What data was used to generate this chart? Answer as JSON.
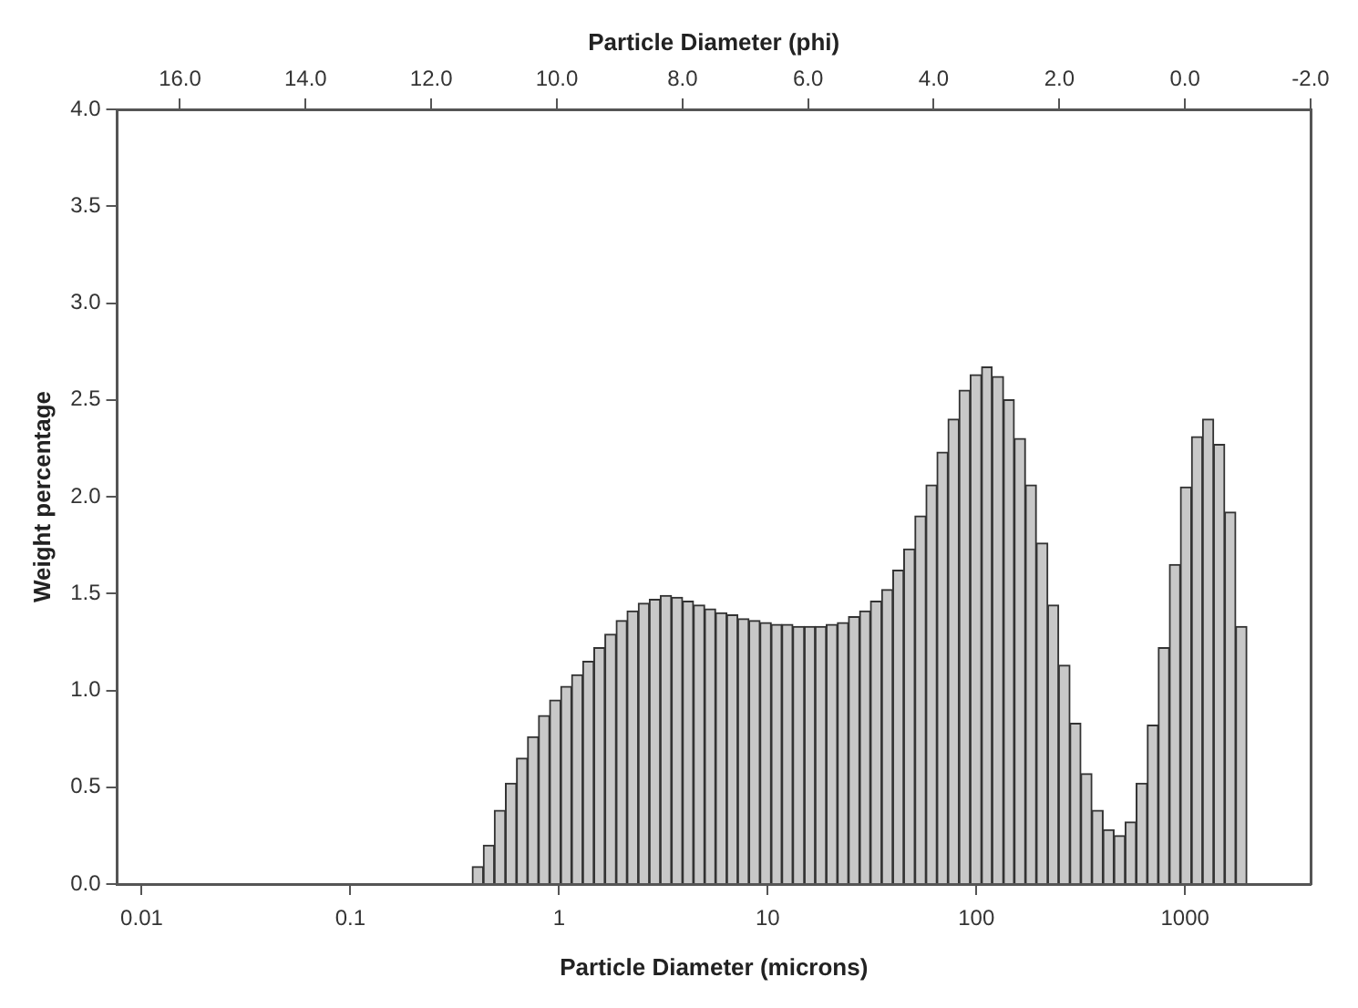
{
  "chart_data": {
    "type": "histogram",
    "xlabel": "Particle Diameter (microns)",
    "x2label": "Particle Diameter (phi)",
    "ylabel": "Weight percentage",
    "color": "#c8c8c8",
    "log": "x",
    "bins": [
      0.384,
      0.434,
      0.49,
      0.554,
      0.626,
      0.707,
      0.798,
      0.902,
      1.02,
      1.15,
      1.3,
      1.47,
      1.66,
      1.88,
      2.12,
      2.4,
      2.71,
      3.06,
      3.46,
      3.91,
      4.41,
      4.99,
      5.63,
      6.37,
      7.19,
      8.13,
      9.19,
      10.4,
      11.7,
      13.2,
      15.0,
      16.9,
      19.1,
      21.6,
      24.4,
      27.6,
      31.1,
      35.2,
      39.8,
      44.9,
      50.8,
      57.4,
      64.8,
      73.2,
      82.7,
      93.5,
      106,
      119,
      135,
      152,
      172,
      194,
      220,
      248,
      281,
      317,
      358,
      405,
      457,
      517,
      584,
      660,
      745,
      842,
      951,
      1075,
      1214,
      1372,
      1550,
      1751,
      1979
    ],
    "values": [
      0.09,
      0.2,
      0.38,
      0.52,
      0.65,
      0.76,
      0.87,
      0.95,
      1.02,
      1.08,
      1.15,
      1.22,
      1.29,
      1.36,
      1.41,
      1.45,
      1.47,
      1.49,
      1.48,
      1.46,
      1.44,
      1.42,
      1.4,
      1.39,
      1.37,
      1.36,
      1.35,
      1.34,
      1.34,
      1.33,
      1.33,
      1.33,
      1.34,
      1.35,
      1.38,
      1.41,
      1.46,
      1.52,
      1.62,
      1.73,
      1.9,
      2.06,
      2.23,
      2.4,
      2.55,
      2.63,
      2.67,
      2.62,
      2.5,
      2.3,
      2.06,
      1.76,
      1.44,
      1.13,
      0.83,
      0.57,
      0.38,
      0.28,
      0.25,
      0.32,
      0.52,
      0.82,
      1.22,
      1.65,
      2.05,
      2.31,
      2.4,
      2.27,
      1.92,
      1.33
    ],
    "xlim": [
      0.00763,
      4000
    ],
    "xticks": [
      0.01,
      0.1,
      1,
      10,
      100,
      1000
    ],
    "x2lim": [
      17,
      -2
    ],
    "x2ticks": [
      {
        "value": 16,
        "label": "16.0"
      },
      {
        "value": 14,
        "label": "14.0"
      },
      {
        "value": 12,
        "label": "12.0"
      },
      {
        "value": 10,
        "label": "10.0"
      },
      {
        "value": 8,
        "label": "8.0"
      },
      {
        "value": 6,
        "label": "6.0"
      },
      {
        "value": 4,
        "label": "4.0"
      },
      {
        "value": 2,
        "label": "2.0"
      },
      {
        "value": 0,
        "label": "0.0"
      },
      {
        "value": -2,
        "label": "-2.0"
      }
    ],
    "ylim": [
      0,
      4
    ],
    "yticks": [
      {
        "value": 0,
        "label": "0.0"
      },
      0.5,
      {
        "value": 1,
        "label": "1.0"
      },
      1.5,
      {
        "value": 2,
        "label": "2.0"
      },
      2.5,
      {
        "value": 3,
        "label": "3.0"
      },
      3.5,
      {
        "value": 4,
        "label": "4.0"
      }
    ]
  }
}
